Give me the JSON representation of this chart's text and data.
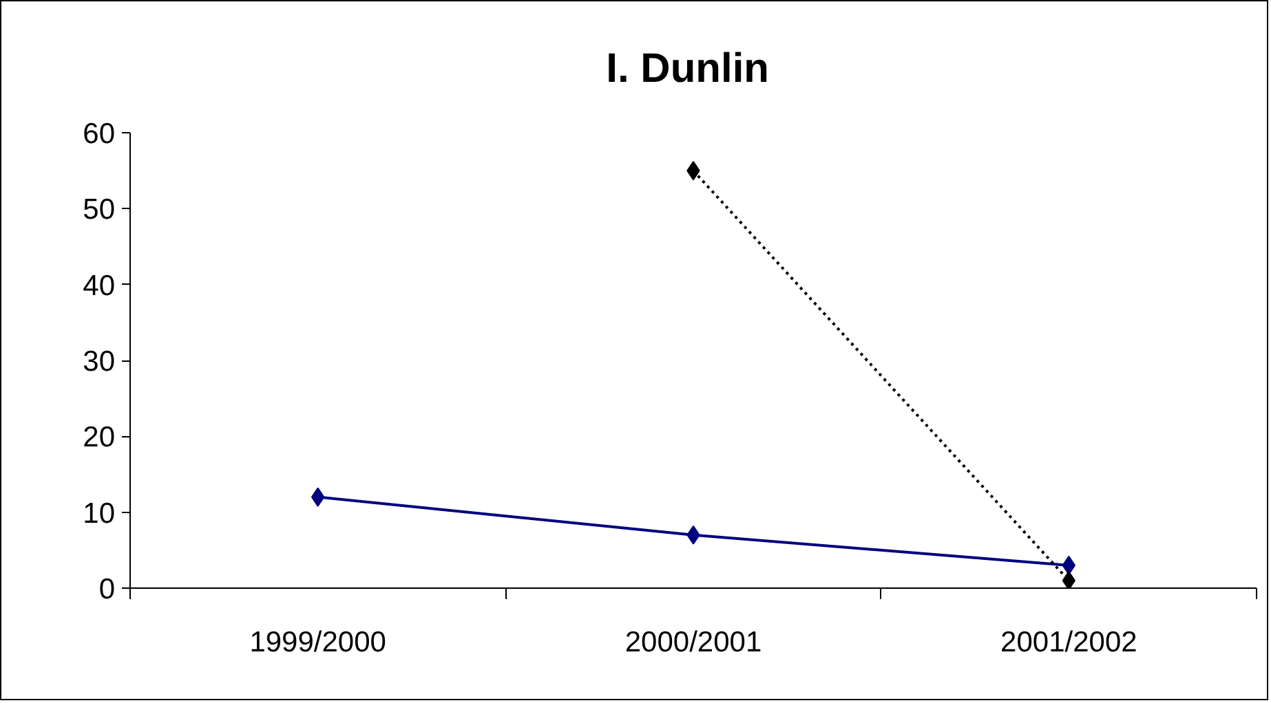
{
  "chart_data": {
    "type": "line",
    "title": "I.  Dunlin",
    "categories": [
      "1999/2000",
      "2000/2001",
      "2001/2002"
    ],
    "series": [
      {
        "color": "#000080",
        "values": [
          12,
          7,
          3
        ],
        "line_style": "solid"
      },
      {
        "color": "#000000",
        "values": [
          null,
          55,
          1
        ],
        "line_style": "dotted"
      }
    ],
    "ylim": [
      0,
      60
    ],
    "yticks": [
      0,
      10,
      20,
      30,
      40,
      50,
      60
    ],
    "marker": "diamond"
  }
}
